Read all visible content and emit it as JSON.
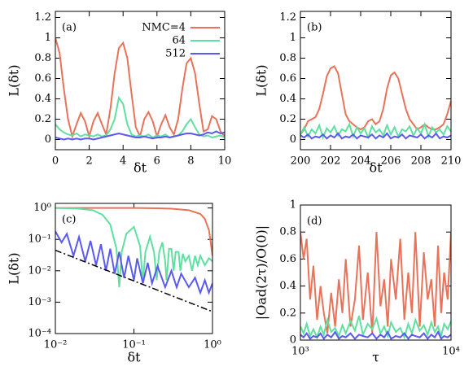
{
  "chart_data": [
    {
      "type": "line",
      "label": "(a)",
      "xlabel": "δt",
      "ylabel": "L(δt)",
      "legend": "upper right",
      "xlim": [
        0,
        10
      ],
      "ylim": [
        -0.1,
        1.26
      ],
      "xticks": [
        0,
        2,
        4,
        6,
        8,
        10
      ],
      "yticks": [
        0,
        0.2,
        0.4,
        0.6,
        0.8,
        1,
        1.2
      ],
      "x": [
        0,
        0.25,
        0.5,
        0.75,
        1,
        1.25,
        1.5,
        1.75,
        2,
        2.25,
        2.5,
        2.75,
        3,
        3.25,
        3.5,
        3.75,
        4,
        4.25,
        4.5,
        4.75,
        5,
        5.25,
        5.5,
        5.75,
        6,
        6.25,
        6.5,
        6.75,
        7,
        7.25,
        7.5,
        7.75,
        8,
        8.25,
        8.5,
        8.75,
        9,
        9.25,
        9.5,
        9.75,
        10
      ],
      "series": [
        {
          "name": "NMC=4",
          "color": "#e8735a",
          "values": [
            1.0,
            0.85,
            0.5,
            0.2,
            0.03,
            0.15,
            0.26,
            0.18,
            0.03,
            0.18,
            0.26,
            0.15,
            0.05,
            0.3,
            0.65,
            0.9,
            0.95,
            0.8,
            0.45,
            0.12,
            0.03,
            0.2,
            0.27,
            0.18,
            0.03,
            0.15,
            0.24,
            0.12,
            0.05,
            0.2,
            0.5,
            0.75,
            0.8,
            0.65,
            0.35,
            0.08,
            0.1,
            0.23,
            0.2,
            0.08,
            0.03
          ]
        },
        {
          "name": "64",
          "color": "#5fe0a0",
          "values": [
            0.15,
            0.1,
            0.07,
            0.05,
            0.04,
            0.06,
            0.03,
            0.05,
            0.04,
            0.03,
            0.05,
            0.03,
            0.04,
            0.1,
            0.2,
            0.41,
            0.35,
            0.15,
            0.05,
            0.03,
            0.04,
            0.03,
            0.05,
            0.02,
            0.04,
            0.03,
            0.05,
            0.02,
            0.03,
            0.04,
            0.08,
            0.15,
            0.2,
            0.12,
            0.05,
            0.03,
            0.04,
            0.02,
            0.03,
            0.04,
            0.02
          ]
        },
        {
          "name": "512",
          "color": "#5a5af0",
          "values": [
            0.02,
            0.01,
            0.0,
            0.01,
            0.0,
            0.01,
            0.0,
            0.01,
            0.01,
            0.0,
            0.01,
            0.02,
            0.03,
            0.04,
            0.05,
            0.06,
            0.05,
            0.04,
            0.03,
            0.02,
            0.02,
            0.03,
            0.02,
            0.01,
            0.02,
            0.02,
            0.03,
            0.02,
            0.03,
            0.04,
            0.05,
            0.06,
            0.06,
            0.05,
            0.04,
            0.05,
            0.07,
            0.06,
            0.08,
            0.06,
            0.07
          ]
        }
      ]
    },
    {
      "type": "line",
      "label": "(b)",
      "xlabel": "δt",
      "ylabel": "L(δt)",
      "xlim": [
        200,
        210
      ],
      "ylim": [
        -0.1,
        1.26
      ],
      "xticks": [
        200,
        202,
        204,
        206,
        208,
        210
      ],
      "yticks": [
        0,
        0.2,
        0.4,
        0.6,
        0.8,
        1,
        1.2
      ],
      "x": [
        200,
        200.25,
        200.5,
        200.75,
        201,
        201.25,
        201.5,
        201.75,
        202,
        202.25,
        202.5,
        202.75,
        203,
        203.25,
        203.5,
        203.75,
        204,
        204.25,
        204.5,
        204.75,
        205,
        205.25,
        205.5,
        205.75,
        206,
        206.25,
        206.5,
        206.75,
        207,
        207.25,
        207.5,
        207.75,
        208,
        208.25,
        208.5,
        208.75,
        209,
        209.25,
        209.5,
        209.75,
        210
      ],
      "series": [
        {
          "color": "#e8735a",
          "values": [
            0.05,
            0.1,
            0.18,
            0.2,
            0.22,
            0.3,
            0.45,
            0.62,
            0.7,
            0.72,
            0.65,
            0.45,
            0.25,
            0.18,
            0.15,
            0.12,
            0.1,
            0.12,
            0.18,
            0.2,
            0.15,
            0.18,
            0.3,
            0.5,
            0.63,
            0.66,
            0.6,
            0.45,
            0.3,
            0.2,
            0.15,
            0.1,
            0.12,
            0.15,
            0.12,
            0.1,
            0.1,
            0.12,
            0.15,
            0.25,
            0.38
          ]
        },
        {
          "color": "#5fe0a0",
          "values": [
            0.05,
            0.12,
            0.03,
            0.1,
            0.06,
            0.14,
            0.02,
            0.11,
            0.07,
            0.13,
            0.04,
            0.1,
            0.08,
            0.15,
            0.03,
            0.12,
            0.06,
            0.11,
            0.02,
            0.13,
            0.07,
            0.1,
            0.04,
            0.14,
            0.05,
            0.12,
            0.03,
            0.1,
            0.08,
            0.13,
            0.04,
            0.11,
            0.06,
            0.15,
            0.03,
            0.12,
            0.07,
            0.1,
            0.05,
            0.13,
            0.08
          ]
        },
        {
          "color": "#5a5af0",
          "values": [
            0.04,
            0.02,
            0.05,
            0.01,
            0.03,
            0.02,
            0.05,
            0.01,
            0.04,
            0.02,
            0.06,
            0.01,
            0.03,
            0.02,
            0.05,
            0.01,
            0.04,
            0.03,
            0.02,
            0.05,
            0.01,
            0.04,
            0.02,
            0.06,
            0.01,
            0.03,
            0.02,
            0.05,
            0.01,
            0.04,
            0.03,
            0.02,
            0.05,
            0.01,
            0.04,
            0.02,
            0.06,
            0.01,
            0.03,
            0.02,
            0.04
          ]
        }
      ]
    },
    {
      "type": "line",
      "label": "(c)",
      "xlabel": "δt",
      "ylabel": "L(δt)",
      "xlog": true,
      "ylog": true,
      "xlim": [
        0.01,
        1
      ],
      "ylim": [
        0.0001,
        1.4
      ],
      "xticks": [
        {
          "value": 0.01,
          "label": "10⁻²"
        },
        {
          "value": 0.1,
          "label": "10⁻¹"
        },
        {
          "value": 1,
          "label": "10⁰"
        }
      ],
      "yticks": [
        {
          "value": 0.0001,
          "label": "10⁻⁴"
        },
        {
          "value": 0.001,
          "label": "10⁻³"
        },
        {
          "value": 0.01,
          "label": "10⁻²"
        },
        {
          "value": 0.1,
          "label": "10⁻¹"
        },
        {
          "value": 1,
          "label": "10⁰"
        }
      ],
      "series": [
        {
          "color": "#e8735a",
          "x": [
            0.01,
            0.1,
            0.2,
            0.3,
            0.5,
            0.7,
            0.8,
            0.9,
            0.95,
            1
          ],
          "values": [
            1,
            1,
            0.98,
            0.95,
            0.85,
            0.65,
            0.45,
            0.2,
            0.08,
            0.03
          ]
        },
        {
          "color": "#5fe0a0",
          "x": [
            0.01,
            0.02,
            0.03,
            0.04,
            0.05,
            0.06,
            0.065,
            0.07,
            0.08,
            0.1,
            0.12,
            0.13,
            0.14,
            0.16,
            0.18,
            0.195,
            0.21,
            0.23,
            0.25,
            0.26,
            0.28,
            0.3,
            0.32,
            0.34,
            0.37,
            0.39,
            0.42,
            0.45,
            0.5,
            0.55,
            0.6,
            0.65,
            0.7,
            0.8,
            0.9,
            1
          ],
          "values": [
            1,
            0.95,
            0.85,
            0.6,
            0.3,
            0.05,
            0.003,
            0.04,
            0.15,
            0.25,
            0.06,
            0.004,
            0.04,
            0.12,
            0.04,
            0.005,
            0.04,
            0.08,
            0.02,
            0.005,
            0.05,
            0.05,
            0.01,
            0.04,
            0.04,
            0.01,
            0.035,
            0.02,
            0.03,
            0.01,
            0.03,
            0.015,
            0.03,
            0.015,
            0.025,
            0.02
          ]
        },
        {
          "color": "#5a5af0",
          "x": [
            0.01,
            0.012,
            0.014,
            0.017,
            0.02,
            0.024,
            0.028,
            0.033,
            0.038,
            0.044,
            0.05,
            0.057,
            0.065,
            0.075,
            0.085,
            0.1,
            0.11,
            0.13,
            0.15,
            0.17,
            0.2,
            0.25,
            0.3,
            0.35,
            0.4,
            0.5,
            0.6,
            0.7,
            0.8,
            0.9,
            1
          ],
          "values": [
            0.18,
            0.08,
            0.15,
            0.03,
            0.12,
            0.02,
            0.09,
            0.015,
            0.07,
            0.01,
            0.05,
            0.008,
            0.04,
            0.006,
            0.03,
            0.005,
            0.025,
            0.004,
            0.018,
            0.004,
            0.014,
            0.003,
            0.01,
            0.003,
            0.008,
            0.003,
            0.006,
            0.002,
            0.005,
            0.002,
            0.004
          ]
        },
        {
          "color": "#000000",
          "dash": "dashdot",
          "x": [
            0.01,
            1
          ],
          "values": [
            0.045,
            0.0005
          ]
        }
      ]
    },
    {
      "type": "line",
      "label": "(d)",
      "xlabel": "τ",
      "ylabel": "|Oad(2τ)/O(0)|",
      "xlog": true,
      "xlim": [
        1000,
        10000
      ],
      "ylim": [
        0,
        1
      ],
      "xticks": [
        {
          "value": 1000,
          "label": "10³"
        },
        {
          "value": 10000,
          "label": "10⁴"
        }
      ],
      "yticks": [
        0,
        0.2,
        0.4,
        0.6,
        0.8,
        1
      ],
      "x": [
        1000,
        1050,
        1100,
        1160,
        1220,
        1290,
        1360,
        1430,
        1510,
        1600,
        1700,
        1800,
        1900,
        2000,
        2150,
        2300,
        2450,
        2600,
        2800,
        3000,
        3200,
        3400,
        3600,
        3800,
        4000,
        4300,
        4600,
        4900,
        5200,
        5500,
        5800,
        6200,
        6600,
        7000,
        7400,
        7800,
        8200,
        8600,
        9000,
        9500,
        10000
      ],
      "series": [
        {
          "color": "#e8735a",
          "values": [
            0.8,
            0.6,
            0.75,
            0.3,
            0.55,
            0.15,
            0.4,
            0.2,
            0.05,
            0.35,
            0.1,
            0.45,
            0.2,
            0.6,
            0.1,
            0.3,
            0.7,
            0.15,
            0.5,
            0.05,
            0.8,
            0.25,
            0.45,
            0.1,
            0.6,
            0.3,
            0.75,
            0.15,
            0.5,
            0.2,
            0.8,
            0.1,
            0.65,
            0.3,
            0.45,
            0.1,
            0.7,
            0.2,
            0.5,
            0.3,
            0.8
          ]
        },
        {
          "color": "#5fe0a0",
          "values": [
            0.1,
            0.05,
            0.12,
            0.03,
            0.08,
            0.02,
            0.1,
            0.04,
            0.15,
            0.06,
            0.09,
            0.03,
            0.11,
            0.05,
            0.14,
            0.07,
            0.18,
            0.04,
            0.12,
            0.08,
            0.16,
            0.05,
            0.1,
            0.03,
            0.13,
            0.06,
            0.09,
            0.02,
            0.12,
            0.05,
            0.15,
            0.07,
            0.11,
            0.04,
            0.13,
            0.06,
            0.1,
            0.03,
            0.12,
            0.08,
            0.14
          ]
        },
        {
          "color": "#5a5af0",
          "values": [
            0.04,
            0.02,
            0.05,
            0.01,
            0.03,
            0.02,
            0.05,
            0.01,
            0.04,
            0.02,
            0.06,
            0.01,
            0.03,
            0.02,
            0.05,
            0.01,
            0.04,
            0.03,
            0.02,
            0.05,
            0.01,
            0.04,
            0.02,
            0.06,
            0.01,
            0.03,
            0.02,
            0.05,
            0.01,
            0.04,
            0.03,
            0.02,
            0.05,
            0.01,
            0.04,
            0.02,
            0.06,
            0.01,
            0.03,
            0.02,
            0.04
          ]
        }
      ]
    }
  ]
}
